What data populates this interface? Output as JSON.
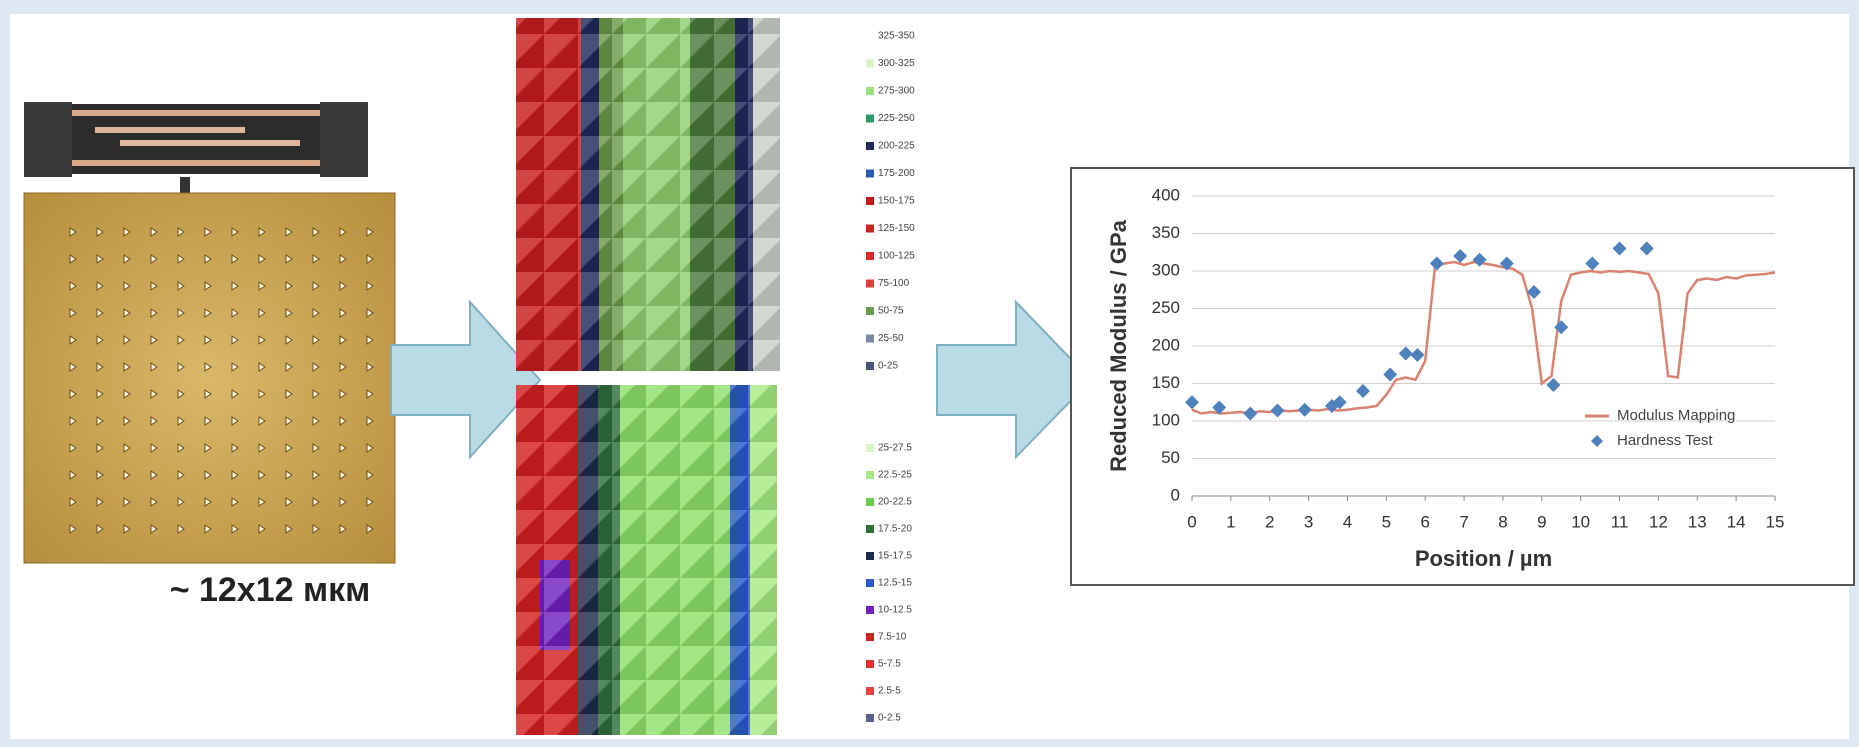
{
  "caption": "~ 12x12 мкм",
  "maps": [
    {
      "legend": [
        {
          "label": "325-350",
          "color": "#ffffff"
        },
        {
          "label": "300-325",
          "color": "#d9f5c6"
        },
        {
          "label": "275-300",
          "color": "#9be27a"
        },
        {
          "label": "225-250",
          "color": "#2e9a6a"
        },
        {
          "label": "200-225",
          "color": "#1f2a5a"
        },
        {
          "label": "175-200",
          "color": "#2a5bb0"
        },
        {
          "label": "150-175",
          "color": "#c01818"
        },
        {
          "label": "125-150",
          "color": "#d42020"
        },
        {
          "label": "100-125",
          "color": "#e02828"
        },
        {
          "label": "75-100",
          "color": "#e83a3a"
        },
        {
          "label": "50-75",
          "color": "#6a9a4a"
        },
        {
          "label": "25-50",
          "color": "#7a8aa8"
        },
        {
          "label": "0-25",
          "color": "#4a5478"
        }
      ]
    },
    {
      "legend": [
        {
          "label": "25-27.5",
          "color": "#d6f7c4"
        },
        {
          "label": "22.5-25",
          "color": "#a6ea82"
        },
        {
          "label": "20-22.5",
          "color": "#6ccc4c"
        },
        {
          "label": "17.5-20",
          "color": "#2e6e3a"
        },
        {
          "label": "15-17.5",
          "color": "#1c2a4a"
        },
        {
          "label": "12.5-15",
          "color": "#2a5bc8"
        },
        {
          "label": "10-12.5",
          "color": "#7020c0"
        },
        {
          "label": "7.5-10",
          "color": "#d82020"
        },
        {
          "label": "5-7.5",
          "color": "#e03030"
        },
        {
          "label": "2.5-5",
          "color": "#e84040"
        },
        {
          "label": "0-2.5",
          "color": "#5a6088"
        }
      ]
    }
  ],
  "chart_data": {
    "type": "line",
    "xlabel": "Position / µm",
    "ylabel": "Reduced Modulus / GPa",
    "xlim": [
      0,
      15
    ],
    "xticks": [
      0,
      1,
      2,
      3,
      4,
      5,
      6,
      7,
      8,
      9,
      10,
      11,
      12,
      13,
      14,
      15
    ],
    "ylim": [
      0,
      400
    ],
    "yticks": [
      0,
      50,
      100,
      150,
      200,
      250,
      300,
      350,
      400
    ],
    "grid": true,
    "legend": "lower right",
    "series": [
      {
        "name": "Modulus Mapping",
        "type": "line",
        "color": "#d9826f",
        "x": [
          0,
          0.25,
          0.5,
          0.75,
          1,
          1.25,
          1.5,
          1.75,
          2,
          2.25,
          2.5,
          2.75,
          3,
          3.25,
          3.5,
          3.75,
          4,
          4.25,
          4.5,
          4.75,
          5,
          5.25,
          5.5,
          5.75,
          6,
          6.25,
          6.5,
          6.75,
          7,
          7.25,
          7.5,
          7.75,
          8,
          8.25,
          8.5,
          8.75,
          9,
          9.25,
          9.5,
          9.75,
          10,
          10.25,
          10.5,
          10.75,
          11,
          11.25,
          11.5,
          11.75,
          12,
          12.25,
          12.5,
          12.75,
          13,
          13.25,
          13.5,
          13.75,
          14,
          14.25,
          14.5,
          14.75,
          15
        ],
        "values": [
          115,
          110,
          112,
          110,
          111,
          112,
          110,
          113,
          112,
          114,
          113,
          114,
          115,
          114,
          116,
          114,
          115,
          117,
          118,
          120,
          135,
          155,
          158,
          155,
          180,
          305,
          310,
          312,
          308,
          312,
          310,
          308,
          305,
          303,
          295,
          250,
          150,
          160,
          260,
          295,
          298,
          300,
          298,
          300,
          299,
          300,
          298,
          296,
          270,
          160,
          158,
          270,
          288,
          290,
          288,
          292,
          290,
          294,
          295,
          296,
          298
        ]
      },
      {
        "name": "Hardness Test",
        "type": "scatter",
        "color": "#4f81bd",
        "x": [
          0,
          0.7,
          1.5,
          2.2,
          2.9,
          3.6,
          3.8,
          4.4,
          5.1,
          5.5,
          5.8,
          6.3,
          6.9,
          7.4,
          8.1,
          8.8,
          9.3,
          9.5,
          10.3,
          11,
          11.7
        ],
        "values": [
          125,
          118,
          110,
          114,
          115,
          120,
          125,
          140,
          162,
          190,
          188,
          310,
          320,
          315,
          310,
          272,
          148,
          225,
          310,
          330,
          330
        ]
      }
    ]
  }
}
